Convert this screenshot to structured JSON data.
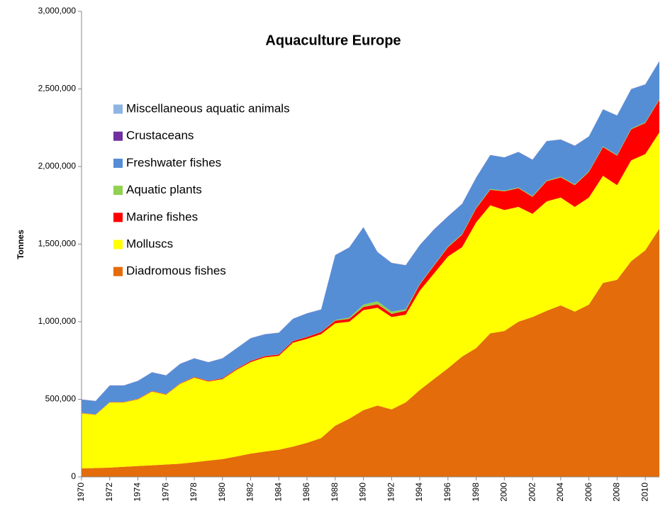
{
  "chart_data": {
    "type": "stacked_area",
    "title": "Aquaculture Europe",
    "y_label": "Tonnes",
    "x": [
      1970,
      1971,
      1972,
      1973,
      1974,
      1975,
      1976,
      1977,
      1978,
      1979,
      1980,
      1981,
      1982,
      1983,
      1984,
      1985,
      1986,
      1987,
      1988,
      1989,
      1990,
      1991,
      1992,
      1993,
      1994,
      1995,
      1996,
      1997,
      1998,
      1999,
      2000,
      2001,
      2002,
      2003,
      2004,
      2005,
      2006,
      2007,
      2008,
      2009,
      2010,
      2011
    ],
    "xlim": [
      1970,
      2011
    ],
    "xticks": [
      1970,
      1972,
      1974,
      1976,
      1978,
      1980,
      1982,
      1984,
      1986,
      1988,
      1990,
      1992,
      1994,
      1996,
      1998,
      2000,
      2002,
      2004,
      2006,
      2008,
      2010
    ],
    "ylim": [
      0,
      3000000
    ],
    "yticks": [
      0,
      {
        "value": 500000,
        "label": "500,000"
      },
      {
        "value": 1000000,
        "label": "1,000,000"
      },
      {
        "value": 1500000,
        "label": "1,500,000"
      },
      {
        "value": 2000000,
        "label": "2,000,000"
      },
      {
        "value": 2500000,
        "label": "2,500,000"
      },
      {
        "value": 3000000,
        "label": "3,000,000"
      }
    ],
    "series": [
      {
        "name": "Diadromous fishes",
        "color": "#e46c0a",
        "values": [
          55000,
          57000,
          60000,
          65000,
          70000,
          75000,
          80000,
          85000,
          95000,
          105000,
          115000,
          132000,
          150000,
          163000,
          175000,
          195000,
          220000,
          250000,
          330000,
          375000,
          430000,
          460000,
          435000,
          480000,
          560000,
          630000,
          700000,
          775000,
          830000,
          925000,
          940000,
          1000000,
          1030000,
          1070000,
          1105000,
          1065000,
          1110000,
          1250000,
          1270000,
          1390000,
          1460000,
          1600000
        ]
      },
      {
        "name": "Molluscs",
        "color": "#ffff00",
        "values": [
          355000,
          343000,
          420000,
          415000,
          430000,
          475000,
          450000,
          515000,
          545000,
          510000,
          515000,
          558000,
          590000,
          607000,
          605000,
          670000,
          670000,
          670000,
          660000,
          625000,
          645000,
          630000,
          595000,
          565000,
          640000,
          680000,
          720000,
          705000,
          810000,
          825000,
          780000,
          740000,
          665000,
          705000,
          695000,
          675000,
          690000,
          690000,
          610000,
          650000,
          620000,
          620000
        ]
      },
      {
        "name": "Marine fishes",
        "color": "#ff0000",
        "values": [
          2000,
          2000,
          2000,
          2000,
          3000,
          3000,
          3000,
          3000,
          4000,
          4000,
          5000,
          6000,
          7000,
          8000,
          9000,
          10000,
          12000,
          14000,
          16000,
          18000,
          20000,
          22000,
          20000,
          25000,
          40000,
          50000,
          60000,
          80000,
          90000,
          100000,
          120000,
          120000,
          110000,
          130000,
          130000,
          140000,
          165000,
          185000,
          190000,
          200000,
          200000,
          210000
        ]
      },
      {
        "name": "Aquatic plants",
        "color": "#92d050",
        "values": [
          1000,
          1000,
          1000,
          1000,
          1000,
          1000,
          1000,
          1000,
          1000,
          1000,
          1000,
          1000,
          1000,
          1000,
          1000,
          1000,
          1000,
          1000,
          5000,
          8000,
          15000,
          20000,
          15000,
          10000,
          5000,
          5000,
          5000,
          5000,
          5000,
          5000,
          5000,
          5000,
          5000,
          5000,
          5000,
          5000,
          5000,
          5000,
          5000,
          5000,
          5000,
          5000
        ]
      },
      {
        "name": "Freshwater fishes",
        "color": "#558ed5",
        "values": [
          85000,
          85000,
          105000,
          105000,
          114000,
          119000,
          119000,
          124000,
          118000,
          118000,
          127000,
          131000,
          145000,
          139000,
          138000,
          142000,
          150000,
          143000,
          417000,
          452000,
          498000,
          316000,
          313000,
          283000,
          248000,
          228000,
          193000,
          193000,
          193000,
          218000,
          213000,
          228000,
          233000,
          253000,
          238000,
          248000,
          223000,
          238000,
          253000,
          253000,
          243000,
          243000
        ]
      },
      {
        "name": "Crustaceans",
        "color": "#7030a0",
        "values": [
          1000,
          1000,
          1000,
          1000,
          1000,
          1000,
          1000,
          1000,
          1000,
          1000,
          1000,
          1000,
          1000,
          1000,
          1000,
          1000,
          1000,
          1000,
          1000,
          1000,
          1000,
          1000,
          1000,
          1000,
          1000,
          1000,
          1000,
          1000,
          1000,
          1000,
          1000,
          1000,
          1000,
          1000,
          1000,
          1000,
          1000,
          1000,
          1000,
          1000,
          1000,
          1000
        ]
      },
      {
        "name": "Miscellaneous aquatic animals",
        "color": "#8eb4e3",
        "values": [
          1000,
          1000,
          1000,
          1000,
          1000,
          1000,
          1000,
          1000,
          1000,
          1000,
          1000,
          1000,
          1000,
          1000,
          1000,
          1000,
          1000,
          1000,
          1000,
          1000,
          1000,
          1000,
          1000,
          1000,
          1000,
          1000,
          1000,
          1000,
          1000,
          1000,
          1000,
          1000,
          1000,
          1000,
          1000,
          1000,
          1000,
          1000,
          1000,
          1000,
          1000,
          1000
        ]
      }
    ]
  }
}
